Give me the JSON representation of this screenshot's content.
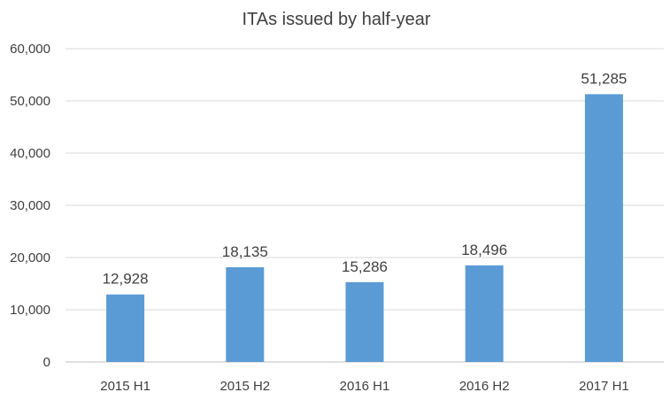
{
  "chart_data": {
    "type": "bar",
    "title": "ITAs issued by half-year",
    "categories": [
      "2015 H1",
      "2015 H2",
      "2016 H1",
      "2016 H2",
      "2017 H1"
    ],
    "values": [
      12928,
      18135,
      15286,
      18496,
      51285
    ],
    "value_labels": [
      "12,928",
      "18,135",
      "15,286",
      "18,496",
      "51,285"
    ],
    "y_ticks": [
      0,
      10000,
      20000,
      30000,
      40000,
      50000,
      60000
    ],
    "y_tick_labels": [
      "0",
      "10,000",
      "20,000",
      "30,000",
      "40,000",
      "50,000",
      "60,000"
    ],
    "ylim": [
      0,
      60000
    ],
    "xlabel": "",
    "ylabel": "",
    "grid": true,
    "legend": "none",
    "bar_color": "#5B9BD5",
    "grid_color": "#D9D9D9",
    "text_color": "#404040"
  }
}
